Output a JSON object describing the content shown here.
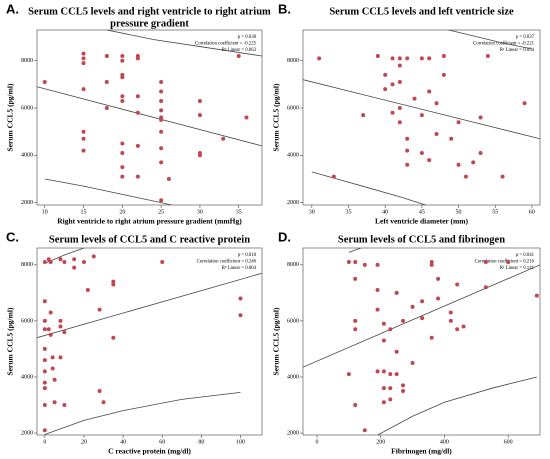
{
  "chart_data": [
    {
      "type": "scatter",
      "panel_label": "A.",
      "title": [
        "Serum CCL5 levels and right ventricle to right atrium",
        "pressure gradient"
      ],
      "x_label": "Right ventricle to right atrium pressure gradient (mmHg)",
      "y_label": "Serum CCL5 (pg/ml)",
      "annotations": [
        "p = 0.038",
        "Correlation coefficient = -0.225",
        "R² Linear = 0.063"
      ],
      "color": "#c0474f",
      "xlim": [
        9,
        38
      ],
      "xticks": [
        10,
        15,
        20,
        25,
        30,
        35
      ],
      "ylim": [
        1900,
        9300
      ],
      "yticks": [
        2000,
        4000,
        6000,
        8000
      ],
      "x": [
        10,
        15,
        15,
        15,
        15,
        15,
        15,
        15,
        18,
        18,
        18,
        20,
        20,
        20,
        20,
        20,
        20,
        20,
        20,
        20,
        20,
        22,
        22,
        22,
        22,
        22,
        22,
        25,
        25,
        25,
        25,
        25,
        25,
        25,
        25,
        25,
        25,
        26,
        30,
        30,
        30,
        30,
        33,
        35,
        36
      ],
      "values": [
        7100,
        8300,
        8100,
        7900,
        6800,
        5000,
        4700,
        4200,
        8200,
        7100,
        6000,
        8200,
        8000,
        7400,
        7300,
        6500,
        6300,
        4500,
        4100,
        3500,
        3100,
        8200,
        8100,
        6500,
        5800,
        4400,
        3100,
        7100,
        6700,
        6300,
        5900,
        5600,
        5500,
        5000,
        4300,
        3700,
        2100,
        3000,
        6300,
        5700,
        4100,
        4000,
        4700,
        8200,
        5600
      ],
      "fit": {
        "x": [
          9,
          38
        ],
        "y": [
          6900,
          4400
        ]
      },
      "band_upper": {
        "x": [
          18,
          24,
          30,
          38
        ],
        "y": [
          9300,
          8900,
          8600,
          8200
        ]
      },
      "band_lower": {
        "x": [
          10,
          15,
          20,
          25,
          27
        ],
        "y": [
          3000,
          2700,
          2350,
          2000,
          1850
        ]
      }
    },
    {
      "type": "scatter",
      "panel_label": "B.",
      "title": [
        "Serum CCL5 levels and left ventricle size"
      ],
      "x_label": "Left ventricle diameter (mm)",
      "y_label": "Serum CCL5 (pg/ml)",
      "annotations": [
        "p = 0.037",
        "Correlation coefficient = -0.221",
        "R² Linear = 0.054"
      ],
      "color": "#c0474f",
      "xlim": [
        28.8,
        61.1
      ],
      "xticks": [
        30,
        35,
        40,
        45,
        50,
        55,
        60
      ],
      "ylim": [
        1900,
        9300
      ],
      "yticks": [
        2000,
        4000,
        6000,
        8000
      ],
      "x": [
        31,
        33,
        37,
        39,
        40,
        40,
        41,
        41,
        41,
        42,
        42,
        42,
        42,
        42,
        43,
        43,
        43,
        43,
        44,
        45,
        45,
        45,
        46,
        46,
        46,
        47,
        47,
        48,
        48,
        49,
        50,
        50,
        51,
        52,
        53,
        53,
        54,
        56,
        59
      ],
      "values": [
        8100,
        3100,
        5700,
        8200,
        7400,
        6800,
        8100,
        7000,
        5800,
        8100,
        7800,
        7100,
        6000,
        5400,
        8100,
        4700,
        4200,
        3600,
        6400,
        8100,
        5700,
        4100,
        8100,
        6700,
        3800,
        6200,
        4900,
        8200,
        7400,
        4700,
        5400,
        3600,
        3100,
        3700,
        5600,
        4100,
        8200,
        3100,
        6200
      ],
      "fit": {
        "x": [
          28.8,
          61.1
        ],
        "y": [
          7200,
          4700
        ]
      },
      "band_upper": {
        "x": [
          48,
          52,
          56,
          60
        ],
        "y": [
          9350,
          9050,
          8750,
          8500
        ]
      },
      "band_lower": {
        "x": [
          30,
          34,
          38,
          42,
          46
        ],
        "y": [
          3300,
          2950,
          2600,
          2250,
          1850
        ]
      }
    },
    {
      "type": "scatter",
      "panel_label": "C.",
      "title": [
        "Serum levels of CCL5 and C reactive protein"
      ],
      "x_label": "C reactive protein (mg/dl)",
      "y_label": "Serum CCL5 (pg/ml)",
      "annotations": [
        "p = 0.018",
        "Correlation coefficient = 0.246",
        "R² Linear = 0.064"
      ],
      "color": "#c0474f",
      "xlim": [
        -4,
        111
      ],
      "xticks": [
        0,
        20,
        40,
        60,
        80,
        100
      ],
      "ylim": [
        1930,
        8600
      ],
      "yticks": [
        2000,
        4000,
        6000,
        8000
      ],
      "x": [
        0,
        0,
        0,
        0,
        0,
        0,
        0,
        0,
        0,
        0,
        0,
        2,
        2,
        3,
        3,
        3,
        4,
        4,
        5,
        5,
        8,
        8,
        8,
        8,
        10,
        10,
        10,
        15,
        15,
        20,
        22,
        25,
        28,
        28,
        30,
        35,
        35,
        35,
        60,
        100,
        100
      ],
      "values": [
        8100,
        6700,
        6000,
        5700,
        5000,
        4600,
        4200,
        3800,
        3600,
        3000,
        2100,
        8200,
        5700,
        8100,
        6300,
        5500,
        4700,
        4300,
        3900,
        3100,
        8200,
        6000,
        5800,
        4700,
        8100,
        5600,
        3000,
        8200,
        7900,
        8100,
        7100,
        8300,
        6400,
        3500,
        3100,
        7400,
        7300,
        5400,
        8100,
        6800,
        6200
      ],
      "fit": {
        "x": [
          -4,
          111
        ],
        "y": [
          5400,
          7700
        ]
      },
      "band_upper": {
        "x": [
          0,
          10,
          20,
          30
        ],
        "y": [
          8050,
          8350,
          8600,
          8800
        ]
      },
      "band_lower": {
        "x": [
          0,
          20,
          40,
          70,
          100
        ],
        "y": [
          1950,
          2450,
          2800,
          3200,
          3450
        ]
      }
    },
    {
      "type": "scatter",
      "panel_label": "D.",
      "title": [
        "Serum levels of  CCL5 and fibrinogen"
      ],
      "x_label": "Fibrinogen (mg/dl)",
      "y_label": "Serum CCL5 (pg/ml)",
      "annotations": [
        "p = 0.041",
        "Correlation coefficient = 0.216",
        "R² Linear = 0.141"
      ],
      "color": "#c0474f",
      "xlim": [
        -44,
        700
      ],
      "xticks": [
        0,
        200,
        400,
        600
      ],
      "ylim": [
        1930,
        8600
      ],
      "yticks": [
        2000,
        4000,
        6000,
        8000
      ],
      "x": [
        100,
        100,
        120,
        120,
        120,
        120,
        120,
        150,
        150,
        190,
        190,
        190,
        190,
        210,
        210,
        210,
        210,
        210,
        230,
        230,
        230,
        230,
        250,
        250,
        250,
        270,
        270,
        270,
        300,
        300,
        330,
        330,
        360,
        360,
        360,
        380,
        380,
        420,
        420,
        440,
        440,
        460,
        530,
        530,
        600,
        690
      ],
      "values": [
        8100,
        4100,
        8100,
        7500,
        6000,
        5700,
        3000,
        8000,
        2100,
        8000,
        7100,
        6400,
        4200,
        5900,
        5300,
        4200,
        3600,
        3100,
        5700,
        4100,
        3600,
        3200,
        7000,
        4900,
        4100,
        6000,
        3700,
        3500,
        6500,
        4500,
        6700,
        6100,
        8100,
        8000,
        5400,
        7500,
        6800,
        6300,
        6000,
        7300,
        5700,
        5800,
        8100,
        7200,
        8100,
        6900
      ],
      "fit": {
        "x": [
          -44,
          700
        ],
        "y": [
          4350,
          8000
        ]
      },
      "band_upper": {
        "x": [
          100,
          150,
          200,
          250
        ],
        "y": [
          8450,
          8650,
          8850,
          9050
        ]
      },
      "band_lower": {
        "x": [
          190,
          300,
          400,
          550,
          690
        ],
        "y": [
          1930,
          2600,
          3100,
          3600,
          4000
        ]
      }
    }
  ]
}
